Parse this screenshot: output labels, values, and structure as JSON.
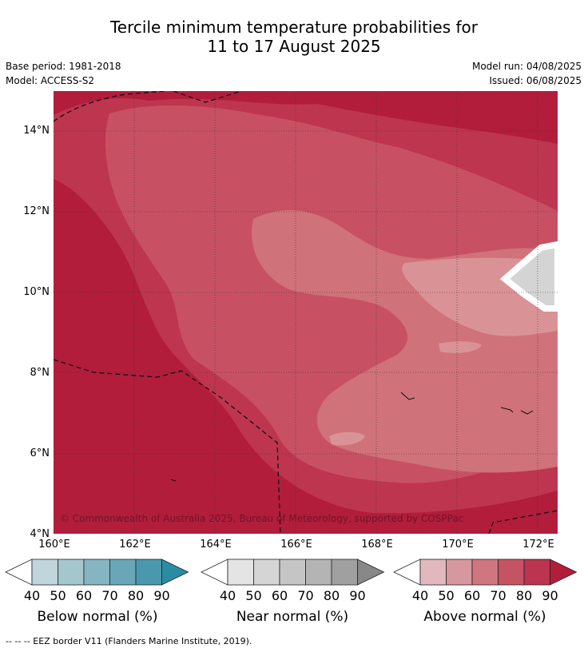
{
  "title": {
    "line1": "Tercile minimum temperature probabilities for",
    "line2": "11 to 17 August 2025"
  },
  "meta": {
    "base_period": "Base period: 1981-2018",
    "model": "Model: ACCESS-S2",
    "model_run": "Model run: 04/08/2025",
    "issued": "Issued: 06/08/2025"
  },
  "map": {
    "copyright": "© Commonwealth of Australia 2025, Bureau of Meteorology, supported by COSPPac",
    "lat_labels": [
      "14°N",
      "12°N",
      "10°N",
      "8°N",
      "6°N",
      "4°N"
    ],
    "lon_labels": [
      "160°E",
      "162°E",
      "164°E",
      "166°E",
      "168°E",
      "170°E",
      "172°E"
    ],
    "colors": {
      "above_90": "#b21d3c",
      "above_80": "#be3550",
      "above_70": "#c75163",
      "above_60": "#d07279",
      "above_50": "#d99396",
      "near_50": "#d4d4d4"
    }
  },
  "colorbars": {
    "below": {
      "label": "Below normal (%)",
      "ticks": [
        "40",
        "50",
        "60",
        "70",
        "80",
        "90"
      ],
      "colors": [
        "#ffffff",
        "#c0d5dc",
        "#a4c6cd",
        "#86b5c2",
        "#69a7b8",
        "#4a98ae",
        "#2a8ca3"
      ]
    },
    "near": {
      "label": "Near normal (%)",
      "ticks": [
        "40",
        "50",
        "60",
        "70",
        "80",
        "90"
      ],
      "colors": [
        "#ffffff",
        "#e4e4e4",
        "#d5d5d5",
        "#c5c5c5",
        "#b4b4b4",
        "#a0a0a0",
        "#888888"
      ]
    },
    "above": {
      "label": "Above normal (%)",
      "ticks": [
        "40",
        "50",
        "60",
        "70",
        "80",
        "90"
      ],
      "colors": [
        "#ffffff",
        "#e0b8bd",
        "#d7979e",
        "#cf7680",
        "#c55364",
        "#bb3450",
        "#b21d3c"
      ]
    }
  },
  "footnote": "--  --  -- EEZ border V11 (Flanders Marine Institute, 2019)."
}
